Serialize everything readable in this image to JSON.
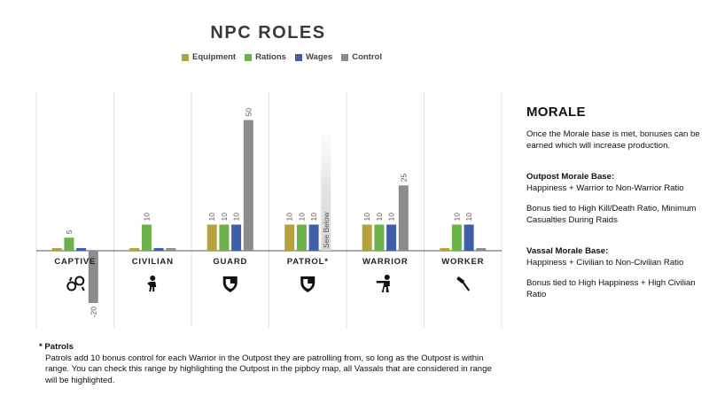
{
  "chart_data": {
    "type": "bar",
    "title": "NPC ROLES",
    "categories": [
      "CAPTIVE",
      "CIVILIAN",
      "GUARD",
      "PATROL*",
      "WARRIOR",
      "WORKER"
    ],
    "series": [
      {
        "name": "Equipment",
        "color": "#b5a23e",
        "values": [
          1,
          1,
          10,
          10,
          10,
          1
        ]
      },
      {
        "name": "Rations",
        "color": "#6bb24b",
        "values": [
          5,
          10,
          10,
          10,
          10,
          10
        ]
      },
      {
        "name": "Wages",
        "color": "#3f5ea8",
        "values": [
          1,
          1,
          10,
          10,
          10,
          10
        ]
      },
      {
        "name": "Control",
        "color": "#8c8c8c",
        "values": [
          -20,
          1,
          50,
          null,
          25,
          1
        ]
      }
    ],
    "value_labels": [
      [
        "",
        "5",
        "",
        "-20"
      ],
      [
        "",
        "10",
        "",
        ""
      ],
      [
        "10",
        "10",
        "10",
        "50"
      ],
      [
        "10",
        "10",
        "10",
        "See Below"
      ],
      [
        "10",
        "10",
        "10",
        "25"
      ],
      [
        "",
        "10",
        "10",
        ""
      ]
    ],
    "ylim": [
      -22,
      58
    ],
    "legend_position": "top-center",
    "grid": false
  },
  "roles": [
    {
      "name": "CAPTIVE",
      "icon": "handcuffs-icon"
    },
    {
      "name": "CIVILIAN",
      "icon": "civilian-icon"
    },
    {
      "name": "GUARD",
      "icon": "shield-icon"
    },
    {
      "name": "PATROL*",
      "icon": "shield-icon"
    },
    {
      "name": "WARRIOR",
      "icon": "gunman-icon"
    },
    {
      "name": "WORKER",
      "icon": "hammer-icon"
    }
  ],
  "morale": {
    "title": "MORALE",
    "intro": "Once the Morale base is met, bonuses can be earned which will increase production.",
    "outpost_head": "Outpost Morale Base:",
    "outpost_ratio": "Happiness + Warrior to Non-Warrior Ratio",
    "outpost_bonus": "Bonus tied to High Kill/Death Ratio, Minimum Casualties During Raids",
    "vassal_head": "Vassal Morale Base:",
    "vassal_ratio": "Happiness + Civilian to Non-Civilian Ratio",
    "vassal_bonus": "Bonus tied to High Happiness + High Civilian Ratio"
  },
  "footnote": {
    "title": "* Patrols",
    "body": "Patrols add 10 bonus control for each Warrior in the Outpost they are patrolling from, so long as the Outpost is within range. You can check this range by highlighting the Outpost in the pipboy map, all Vassals that are considered in range will be highlighted."
  }
}
